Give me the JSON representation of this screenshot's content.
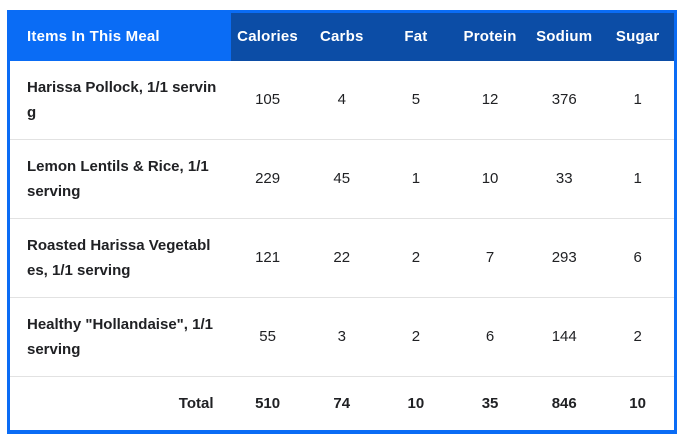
{
  "colors": {
    "accent_blue": "#0a6cf5",
    "header_dark_blue": "#0c4da6",
    "divider_gray": "#e2e2e2",
    "body_text": "#202124"
  },
  "table": {
    "header": {
      "items_label": "Items In This Meal",
      "columns": [
        "Calories",
        "Carbs",
        "Fat",
        "Protein",
        "Sodium",
        "Sugar"
      ]
    },
    "rows": [
      {
        "name": "Harissa Pollock, 1/1 serving",
        "values": [
          "105",
          "4",
          "5",
          "12",
          "376",
          "1"
        ]
      },
      {
        "name": "Lemon Lentils & Rice, 1/1 serving",
        "values": [
          "229",
          "45",
          "1",
          "10",
          "33",
          "1"
        ]
      },
      {
        "name": "Roasted Harissa Vegetables, 1/1 serving",
        "values": [
          "121",
          "22",
          "2",
          "7",
          "293",
          "6"
        ]
      },
      {
        "name": "Healthy \"Hollandaise\", 1/1 serving",
        "values": [
          "55",
          "3",
          "2",
          "6",
          "144",
          "2"
        ]
      }
    ],
    "total": {
      "label": "Total",
      "values": [
        "510",
        "74",
        "10",
        "35",
        "846",
        "10"
      ]
    }
  }
}
